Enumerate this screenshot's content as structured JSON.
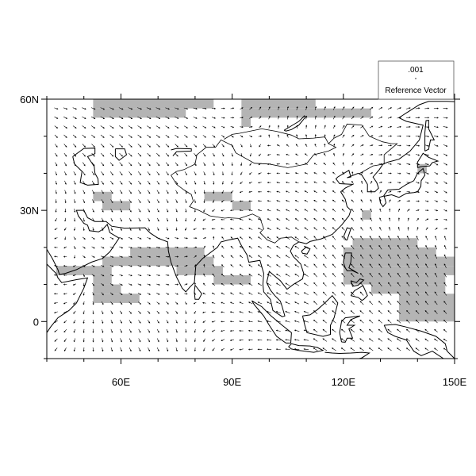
{
  "map": {
    "extent": {
      "lon": [
        40,
        150
      ],
      "lat": [
        -10,
        60
      ]
    },
    "x_ticks": [
      {
        "lon": 60,
        "label": "60E"
      },
      {
        "lon": 90,
        "label": "90E"
      },
      {
        "lon": 120,
        "label": "120E"
      },
      {
        "lon": 150,
        "label": "150E"
      }
    ],
    "y_ticks": [
      {
        "lat": 60,
        "label": "60N"
      },
      {
        "lat": 30,
        "label": "30N"
      },
      {
        "lat": 0,
        "label": "0"
      }
    ],
    "minor_tick_interval_deg": 10,
    "vector_grid_spacing_deg": 2.5,
    "shading_color": "#b4b4b4",
    "coastline_color": "#000000",
    "vector_color": "#000000",
    "shaded_cells": [
      {
        "lon": [
          52.5,
          85
        ],
        "lat": [
          57.5,
          60
        ]
      },
      {
        "lon": [
          52.5,
          77.5
        ],
        "lat": [
          55,
          57.5
        ]
      },
      {
        "lon": [
          92.5,
          112.5
        ],
        "lat": [
          57.5,
          60
        ]
      },
      {
        "lon": [
          92.5,
          127.5
        ],
        "lat": [
          55,
          57.5
        ]
      },
      {
        "lon": [
          92.5,
          95
        ],
        "lat": [
          52.5,
          55
        ]
      },
      {
        "lon": [
          52.5,
          57.5
        ],
        "lat": [
          32.5,
          35
        ]
      },
      {
        "lon": [
          55,
          62.5
        ],
        "lat": [
          30,
          32.5
        ]
      },
      {
        "lon": [
          82.5,
          90
        ],
        "lat": [
          32.5,
          35
        ]
      },
      {
        "lon": [
          90,
          95
        ],
        "lat": [
          30,
          32.5
        ]
      },
      {
        "lon": [
          62.5,
          82.5
        ],
        "lat": [
          17.5,
          20
        ]
      },
      {
        "lon": [
          55,
          85
        ],
        "lat": [
          15,
          17.5
        ]
      },
      {
        "lon": [
          42.5,
          57.5
        ],
        "lat": [
          12.5,
          15
        ]
      },
      {
        "lon": [
          75,
          87.5
        ],
        "lat": [
          12.5,
          15
        ]
      },
      {
        "lon": [
          52.5,
          57.5
        ],
        "lat": [
          10,
          12.5
        ]
      },
      {
        "lon": [
          85,
          95
        ],
        "lat": [
          10,
          12.5
        ]
      },
      {
        "lon": [
          52.5,
          60
        ],
        "lat": [
          7.5,
          10
        ]
      },
      {
        "lon": [
          52.5,
          65
        ],
        "lat": [
          5,
          7.5
        ]
      },
      {
        "lon": [
          140,
          142.5
        ],
        "lat": [
          40,
          42.5
        ]
      },
      {
        "lon": [
          125,
          127.5
        ],
        "lat": [
          27.5,
          30
        ]
      },
      {
        "lon": [
          122.5,
          140
        ],
        "lat": [
          20,
          22.5
        ]
      },
      {
        "lon": [
          120,
          145
        ],
        "lat": [
          17.5,
          20
        ]
      },
      {
        "lon": [
          120,
          150
        ],
        "lat": [
          15,
          17.5
        ]
      },
      {
        "lon": [
          120,
          150
        ],
        "lat": [
          12.5,
          15
        ]
      },
      {
        "lon": [
          120,
          147.5
        ],
        "lat": [
          10,
          12.5
        ]
      },
      {
        "lon": [
          127.5,
          147.5
        ],
        "lat": [
          7.5,
          10
        ]
      },
      {
        "lon": [
          135,
          150
        ],
        "lat": [
          0,
          7.5
        ]
      }
    ]
  },
  "reference_vector": {
    "magnitude": ".001",
    "label": "Reference Vector"
  }
}
